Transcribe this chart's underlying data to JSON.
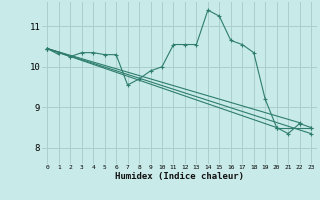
{
  "background_color": "#c8eae8",
  "grid_color": "#aacfcc",
  "line_color": "#2e7d6e",
  "xlabel": "Humidex (Indice chaleur)",
  "ylabel_ticks": [
    8,
    9,
    10,
    11
  ],
  "xlim": [
    -0.5,
    23.5
  ],
  "ylim": [
    7.6,
    11.6
  ],
  "series": [
    [
      10.45,
      10.35,
      10.25,
      10.35,
      10.35,
      10.3,
      10.3,
      9.55,
      9.7,
      9.9,
      10.0,
      10.55,
      10.55,
      10.55,
      11.4,
      11.25,
      10.65,
      10.55,
      10.35,
      9.2,
      8.5,
      8.35,
      8.6,
      8.5
    ],
    [
      10.45,
      10.3,
      8.62
    ],
    [
      10.45,
      8.5,
      8.5
    ],
    [
      10.45,
      8.35
    ]
  ],
  "series2_x": [
    0,
    1,
    22
  ],
  "series3_x": [
    0,
    20,
    23
  ],
  "series4_x": [
    0,
    23
  ],
  "xtick_labels": [
    "0",
    "1",
    "2",
    "3",
    "4",
    "5",
    "6",
    "7",
    "8",
    "9",
    "10",
    "11",
    "12",
    "13",
    "14",
    "15",
    "16",
    "17",
    "18",
    "19",
    "20",
    "21",
    "22",
    "23"
  ]
}
